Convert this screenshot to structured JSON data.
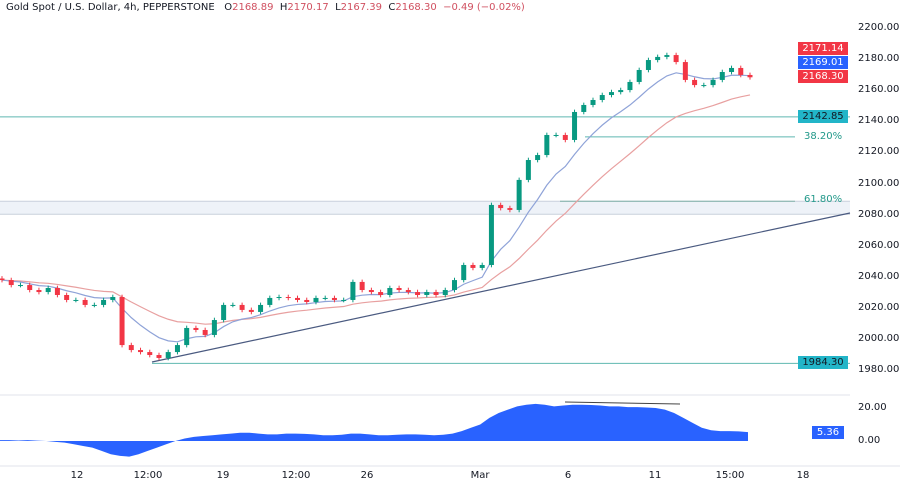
{
  "header": {
    "symbol": "Gold Spot / U.S. Dollar, 4h, PEPPERSTONE",
    "open_label": "O",
    "open": "2168.89",
    "high_label": "H",
    "high": "2170.17",
    "low_label": "L",
    "low": "2167.39",
    "close_label": "C",
    "close": "2168.30",
    "change": "−0.49 (−0.02%)"
  },
  "price_axis": {
    "ticks": [
      "2200.00",
      "2180.00",
      "2160.00",
      "2140.00",
      "2120.00",
      "2100.00",
      "2080.00",
      "2060.00",
      "2040.00",
      "2020.00",
      "2000.00",
      "1980.00"
    ],
    "labels": [
      {
        "text": "2171.14",
        "color": "#f23645"
      },
      {
        "text": "2169.01",
        "color": "#2962ff"
      },
      {
        "text": "2168.30",
        "color": "#f23645"
      },
      {
        "text": "2142.85",
        "color": "#22b5c8"
      },
      {
        "text": "1984.30",
        "color": "#22b5c8"
      }
    ]
  },
  "osc_axis": {
    "ticks": [
      "20.00",
      "0.00"
    ],
    "label": {
      "text": "5.36",
      "color": "#2962ff"
    }
  },
  "time_axis": [
    "12",
    "12:00",
    "19",
    "12:00",
    "26",
    "Mar",
    "6",
    "11",
    "15:00",
    "18"
  ],
  "fib": {
    "l382": "38.20%",
    "l618": "61.80%"
  },
  "levels": {
    "resistance": 2142.85,
    "support": 1984.3,
    "fib382": 2130.0,
    "fib618": 2088.6,
    "zone": [
      2080.2,
      2088.6
    ]
  },
  "colors": {
    "up": "#089981",
    "down": "#f23645",
    "ma_fast": "#8fa3d8",
    "ma_slow": "#e8a0a0",
    "osc": "#2962ff",
    "level": "#5fb8b0",
    "trend": "#4a5a80"
  },
  "chart_data": {
    "type": "candlestick",
    "ylim": [
      1975,
      2205
    ],
    "closes": [
      2037.9,
      2034.7,
      2034.7,
      2031.5,
      2030.2,
      2032.8,
      2028.3,
      2025.1,
      2025.1,
      2021.9,
      2021.9,
      2025.1,
      2027.0,
      1996.1,
      1992.9,
      1991.6,
      1989.7,
      1987.8,
      1991.6,
      1996.1,
      2007.1,
      2005.8,
      2002.6,
      2012.2,
      2021.9,
      2021.9,
      2018.7,
      2017.4,
      2021.9,
      2026.4,
      2027.0,
      2026.4,
      2025.1,
      2023.8,
      2026.4,
      2026.4,
      2025.1,
      2025.1,
      2036.7,
      2031.5,
      2030.2,
      2028.3,
      2032.8,
      2031.5,
      2030.2,
      2028.3,
      2030.2,
      2028.3,
      2031.5,
      2037.9,
      2047.6,
      2045.7,
      2047.6,
      2086.2,
      2084.2,
      2083.0,
      2102.3,
      2115.1,
      2118.3,
      2131.2,
      2131.2,
      2128.0,
      2146.0,
      2150.5,
      2153.7,
      2156.9,
      2158.8,
      2160.1,
      2165.3,
      2173.0,
      2179.4,
      2181.4,
      2182.6,
      2178.1,
      2166.6,
      2163.3,
      2163.3,
      2166.6,
      2171.7,
      2174.3,
      2169.8,
      2168.3
    ],
    "oscillator": {
      "ylim": [
        -12,
        26
      ],
      "values": [
        0.5,
        0.5,
        0.3,
        0.5,
        0.2,
        0,
        -0.5,
        -1,
        -2,
        -3,
        -4,
        -6,
        -8,
        -9,
        -9.5,
        -8,
        -6,
        -4,
        -2,
        0,
        1.5,
        2.5,
        3,
        3.5,
        4,
        4.5,
        5,
        5,
        4.5,
        4,
        4,
        4.5,
        4.5,
        4.3,
        4,
        3.5,
        3.5,
        3.8,
        4.5,
        4.5,
        4,
        3.5,
        3.5,
        3.8,
        4,
        4,
        3.8,
        3.5,
        3.8,
        4.5,
        6,
        8,
        10,
        14,
        17,
        19,
        21,
        22,
        22.5,
        22,
        21,
        21.5,
        22,
        22,
        21.8,
        21.5,
        21,
        21,
        20.5,
        20.5,
        20.3,
        20,
        19,
        17,
        14,
        11,
        8,
        6.5,
        6,
        6,
        5.8,
        5.36
      ]
    }
  }
}
